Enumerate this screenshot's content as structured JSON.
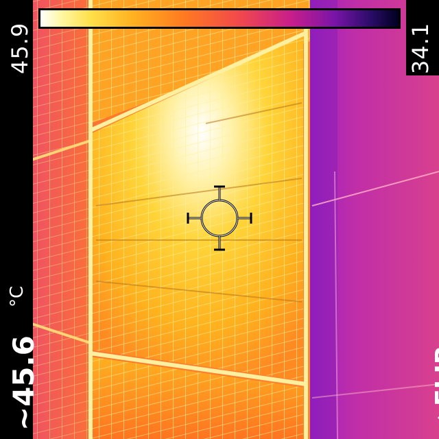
{
  "readouts": {
    "scale_max": "45.9",
    "scale_min": "34.1",
    "spot_value": "~45.6",
    "unit": "°C"
  },
  "brand": {
    "name": "FLIR",
    "icon": "flir-flame-icon"
  },
  "palette": {
    "hot": "#ffffff",
    "warm": "#ffd23a",
    "mid": "#ff7a20",
    "cool": "#c81e8a",
    "cold": "#2c0c6a"
  },
  "crosshair": {
    "icon": "spot-meter-crosshair-icon"
  }
}
